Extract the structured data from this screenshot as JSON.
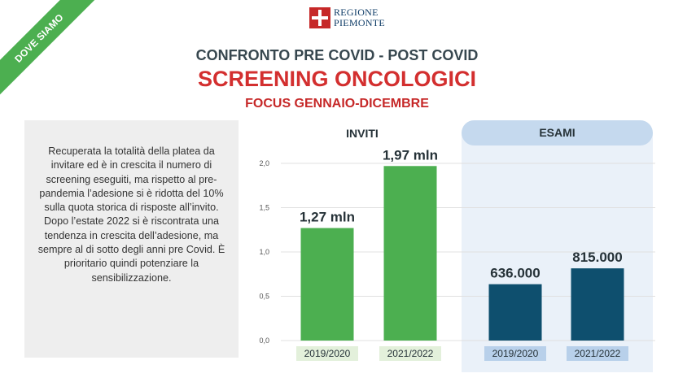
{
  "ribbon": "DOVE SIAMO",
  "logo": {
    "line1": "REGIONE",
    "line2": "PIEMONTE"
  },
  "header": {
    "subtitle": "CONFRONTO PRE COVID - POST COVID",
    "title": "SCREENING ONCOLOGICI",
    "focus": "FOCUS GENNAIO-DICEMBRE"
  },
  "description": "Recuperata la totalità della platea da invitare ed è in crescita il numero di screening eseguiti, ma rispetto al pre-pandemia l’adesione si è ridotta del 10% sulla quota storica di risposte all’invito. Dopo l’estate 2022 si è riscontrata una tendenza in crescita dell’adesione, ma sempre al di sotto degli anni pre Covid. È prioritario quindi potenziare la sensibilizzazione.",
  "colors": {
    "inviti": "#4caf50",
    "esami": "#0e4f6e",
    "inviti_label_bg": "#e3f0db",
    "esami_label_bg": "#b8d0ea",
    "title_red": "#d32f2f"
  },
  "chart_data": {
    "type": "bar",
    "ylim": [
      0,
      2.0
    ],
    "yticks": [
      "0,0",
      "0,5",
      "1,0",
      "1,5",
      "2,0"
    ],
    "grid": true,
    "groups": [
      {
        "name": "INVITI",
        "categories": [
          "2019/2020",
          "2021/2022"
        ],
        "values": [
          1.27,
          1.97
        ],
        "labels": [
          "1,27 mln",
          "1,97 mln"
        ]
      },
      {
        "name": "ESAMI",
        "categories": [
          "2019/2020",
          "2021/2022"
        ],
        "values": [
          0.636,
          0.815
        ],
        "labels": [
          "636.000",
          "815.000"
        ]
      }
    ]
  }
}
